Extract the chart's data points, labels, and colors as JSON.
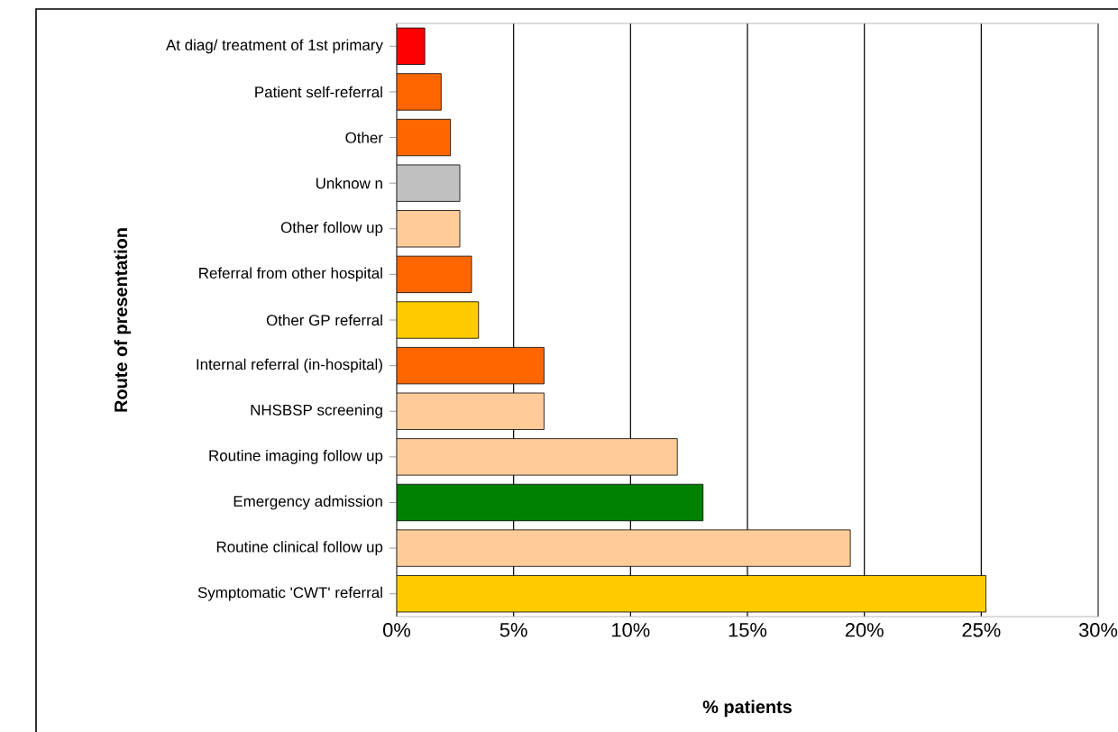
{
  "chart_data": {
    "type": "bar",
    "orientation": "horizontal",
    "categories": [
      "At diag/ treatment of 1st primary",
      "Patient self-referral",
      "Other",
      "Unknow n",
      "Other follow  up",
      "Referral from other hospital",
      "Other GP referral",
      "Internal referral (in-hospital)",
      "NHSBSP screening",
      "Routine imaging follow  up",
      "Emergency admission",
      "Routine clinical follow  up",
      "Symptomatic 'CWT' referral"
    ],
    "values": [
      1.2,
      1.9,
      2.3,
      2.7,
      2.7,
      3.2,
      3.5,
      6.3,
      6.3,
      12.0,
      13.1,
      19.4,
      25.2
    ],
    "colors": [
      "#ff0000",
      "#ff6600",
      "#ff6600",
      "#c0c0c0",
      "#ffcc99",
      "#ff6600",
      "#ffcc00",
      "#ff6600",
      "#ffcc99",
      "#ffcc99",
      "#008000",
      "#ffcc99",
      "#ffcc00"
    ],
    "xlabel": "% patients",
    "ylabel": "Route of presentation",
    "xlim": [
      0,
      30
    ],
    "xticks": [
      {
        "value": 0,
        "label": "0%"
      },
      {
        "value": 5,
        "label": "5%"
      },
      {
        "value": 10,
        "label": "10%"
      },
      {
        "value": 15,
        "label": "15%"
      },
      {
        "value": 20,
        "label": "20%"
      },
      {
        "value": 25,
        "label": "25%"
      },
      {
        "value": 30,
        "label": "30%"
      }
    ],
    "grid": "x"
  }
}
